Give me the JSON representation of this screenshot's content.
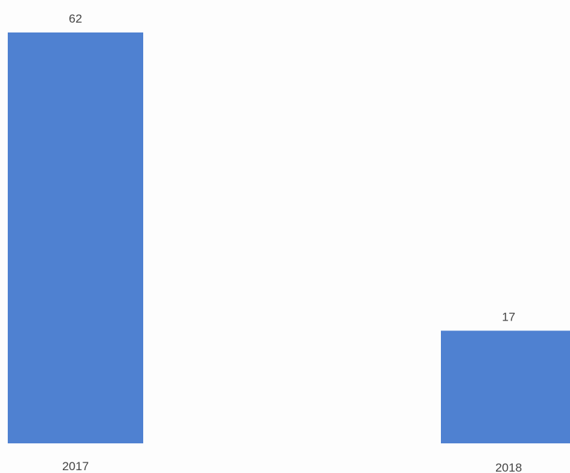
{
  "chart_data": {
    "type": "bar",
    "categories": [
      "2017",
      "2018"
    ],
    "values": [
      62,
      17
    ],
    "data_labels": [
      "62",
      "17"
    ],
    "title": "",
    "xlabel": "",
    "ylabel": "",
    "ylim": [
      0,
      62
    ],
    "grid": false,
    "legend": "none",
    "bar_color": "#4f81d1"
  }
}
